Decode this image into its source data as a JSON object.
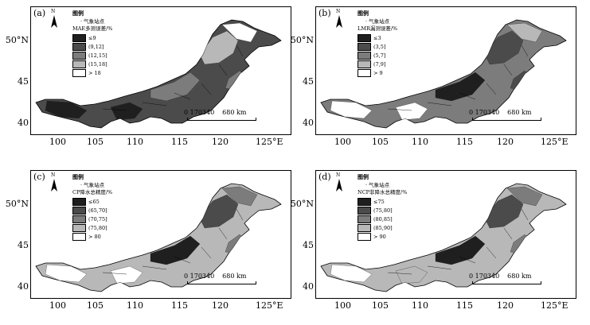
{
  "panels": [
    {
      "label": "(a)",
      "legend_title": "图例",
      "station_label": "气象站点",
      "var_label": "MAE多测误差/%",
      "classes": [
        {
          "label": "≤9",
          "color": "#1f1f1f"
        },
        {
          "label": "(9,12]",
          "color": "#4b4b4b"
        },
        {
          "label": "(12,15]",
          "color": "#7c7c7c"
        },
        {
          "label": "(15,18]",
          "color": "#b8b8b8"
        },
        {
          "label": "> 18",
          "color": "#ffffff"
        }
      ]
    },
    {
      "label": "(b)",
      "legend_title": "图例",
      "station_label": "气象站点",
      "var_label": "LMR漏测误差/%",
      "classes": [
        {
          "label": "≤3",
          "color": "#1f1f1f"
        },
        {
          "label": "(3,5]",
          "color": "#4b4b4b"
        },
        {
          "label": "(5,7]",
          "color": "#7c7c7c"
        },
        {
          "label": "(7,9]",
          "color": "#b8b8b8"
        },
        {
          "label": "> 9",
          "color": "#ffffff"
        }
      ]
    },
    {
      "label": "(c)",
      "legend_title": "图例",
      "station_label": "气象站点",
      "var_label": "CP降水总精度/%",
      "classes": [
        {
          "label": "≤65",
          "color": "#1f1f1f"
        },
        {
          "label": "(65,70]",
          "color": "#4b4b4b"
        },
        {
          "label": "(70,75]",
          "color": "#7c7c7c"
        },
        {
          "label": "(75,80]",
          "color": "#b8b8b8"
        },
        {
          "label": "> 80",
          "color": "#ffffff"
        }
      ]
    },
    {
      "label": "(d)",
      "legend_title": "图例",
      "station_label": "气象站点",
      "var_label": "NCP非降水总精度/%",
      "classes": [
        {
          "label": "≤75",
          "color": "#1f1f1f"
        },
        {
          "label": "(75,80]",
          "color": "#4b4b4b"
        },
        {
          "label": "(80,85]",
          "color": "#7c7c7c"
        },
        {
          "label": "(85,90]",
          "color": "#b8b8b8"
        },
        {
          "label": "> 90",
          "color": "#ffffff"
        }
      ]
    }
  ],
  "north_label": "N",
  "scale": {
    "text": "0 170340",
    "unit": "680 km"
  },
  "axes": {
    "y_ticks": [
      "50°N",
      "45",
      "40"
    ],
    "x_ticks": [
      "100",
      "105",
      "110",
      "115",
      "120",
      "125°E"
    ]
  },
  "maps": {
    "a": {
      "base": "#4b4b4b",
      "patches": [
        {
          "c": "#7c7c7c"
        },
        {
          "c": "#b8b8b8"
        },
        {
          "c": "#ffffff"
        },
        {
          "c": "#1f1f1f"
        },
        {
          "c": "#1f1f1f"
        },
        {
          "c": "#7c7c7c"
        }
      ]
    },
    "b": {
      "base": "#7c7c7c",
      "patches": [
        {
          "c": "#1f1f1f"
        },
        {
          "c": "#4b4b4b"
        },
        {
          "c": "#b8b8b8"
        },
        {
          "c": "#ffffff"
        },
        {
          "c": "#ffffff"
        },
        {
          "c": "#4b4b4b"
        }
      ]
    },
    "c": {
      "base": "#b8b8b8",
      "patches": [
        {
          "c": "#1f1f1f"
        },
        {
          "c": "#4b4b4b"
        },
        {
          "c": "#7c7c7c"
        },
        {
          "c": "#ffffff"
        },
        {
          "c": "#ffffff"
        },
        {
          "c": "#7c7c7c"
        }
      ]
    },
    "d": {
      "base": "#b8b8b8",
      "patches": [
        {
          "c": "#1f1f1f"
        },
        {
          "c": "#4b4b4b"
        },
        {
          "c": "#7c7c7c"
        },
        {
          "c": "#ffffff"
        },
        {
          "c": "#b8b8b8"
        },
        {
          "c": "#7c7c7c"
        }
      ]
    }
  }
}
